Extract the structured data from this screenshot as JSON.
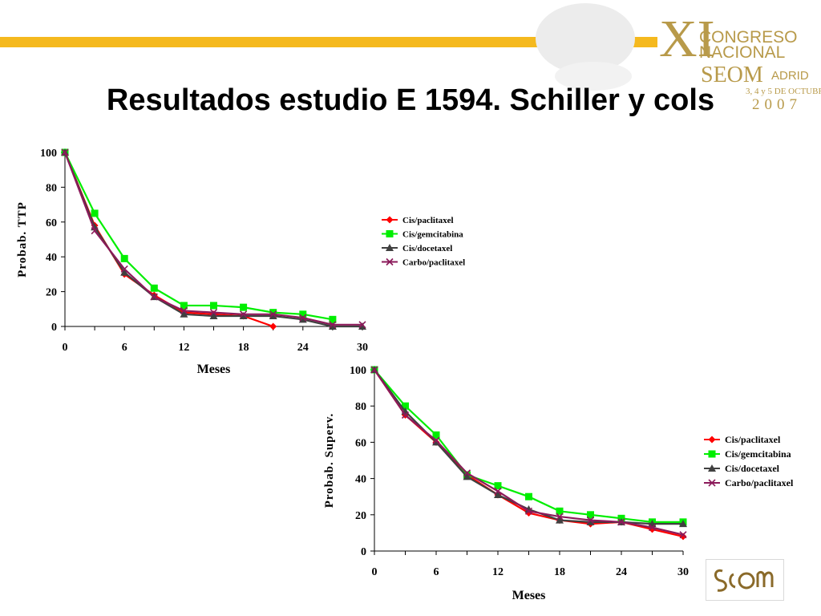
{
  "header": {
    "title": "Resultados estudio E 1594. Schiller y cols",
    "logo": {
      "numeral": "XI",
      "line1": "CONGRESO",
      "line2": "NACIONAL",
      "brand": "SEOM",
      "city": "ADRID",
      "dates": "3, 4 y 5 DE OCTUBRE",
      "year": "2007"
    },
    "colors": {
      "accent_bar": "#f5b91e",
      "logo_gold": "#b89a4a"
    }
  },
  "footer_logo": {
    "text": "SEOM"
  },
  "chart_data": [
    {
      "type": "line",
      "title": "",
      "xlabel": "Meses",
      "ylabel": "Probab. TTP",
      "xlim": [
        0,
        30
      ],
      "ylim": [
        0,
        100
      ],
      "xticks": [
        0,
        6,
        12,
        18,
        24,
        30
      ],
      "yticks": [
        0,
        20,
        40,
        60,
        80,
        100
      ],
      "legend_position": "right-middle",
      "series": [
        {
          "name": "Cis/paclitaxel",
          "color": "#ff0000",
          "marker": "diamond",
          "x": [
            0,
            3,
            6,
            9,
            12,
            15,
            18,
            21
          ],
          "y": [
            100,
            58,
            30,
            18,
            8,
            7,
            6,
            0
          ]
        },
        {
          "name": "Cis/gemcitabina",
          "color": "#00ee00",
          "marker": "square",
          "x": [
            0,
            3,
            6,
            9,
            12,
            15,
            18,
            21,
            24,
            27
          ],
          "y": [
            100,
            65,
            39,
            22,
            12,
            12,
            11,
            8,
            7,
            4
          ]
        },
        {
          "name": "Cis/docetaxel",
          "color": "#404040",
          "marker": "triangle",
          "x": [
            0,
            3,
            6,
            9,
            12,
            15,
            18,
            21,
            24,
            27,
            30
          ],
          "y": [
            100,
            57,
            31,
            17,
            7,
            6,
            6,
            6,
            4,
            0,
            0
          ]
        },
        {
          "name": "Carbo/paclitaxel",
          "color": "#8b1a5a",
          "marker": "x",
          "x": [
            0,
            3,
            6,
            9,
            12,
            15,
            18,
            21,
            24,
            27,
            30
          ],
          "y": [
            100,
            55,
            33,
            17,
            9,
            8,
            7,
            7,
            5,
            1,
            1
          ]
        }
      ]
    },
    {
      "type": "line",
      "title": "",
      "xlabel": "Meses",
      "ylabel": "Probab. Superv.",
      "xlim": [
        0,
        30
      ],
      "ylim": [
        0,
        100
      ],
      "xticks": [
        0,
        6,
        12,
        18,
        24,
        30
      ],
      "yticks": [
        0,
        20,
        40,
        60,
        80,
        100
      ],
      "legend_position": "right-middle",
      "series": [
        {
          "name": "Cis/paclitaxel",
          "color": "#ff0000",
          "marker": "diamond",
          "x": [
            0,
            3,
            6,
            9,
            12,
            15,
            18,
            21,
            24,
            27,
            30
          ],
          "y": [
            100,
            75,
            60,
            42,
            31,
            21,
            17,
            15,
            16,
            12,
            8
          ]
        },
        {
          "name": "Cis/gemcitabina",
          "color": "#00ee00",
          "marker": "square",
          "x": [
            0,
            3,
            6,
            9,
            12,
            15,
            18,
            21,
            24,
            27,
            30
          ],
          "y": [
            100,
            80,
            64,
            42,
            36,
            30,
            22,
            20,
            18,
            16,
            16
          ]
        },
        {
          "name": "Cis/docetaxel",
          "color": "#404040",
          "marker": "triangle",
          "x": [
            0,
            3,
            6,
            9,
            12,
            15,
            18,
            21,
            24,
            27,
            30
          ],
          "y": [
            100,
            77,
            60,
            41,
            31,
            23,
            17,
            16,
            16,
            15,
            15
          ]
        },
        {
          "name": "Carbo/paclitaxel",
          "color": "#8b1a5a",
          "marker": "x",
          "x": [
            0,
            3,
            6,
            9,
            12,
            15,
            18,
            21,
            24,
            27,
            30
          ],
          "y": [
            100,
            75,
            61,
            43,
            33,
            22,
            19,
            17,
            16,
            13,
            9
          ]
        }
      ]
    }
  ]
}
